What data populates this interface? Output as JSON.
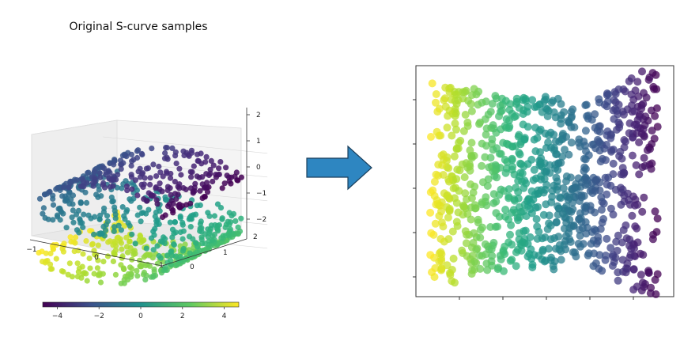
{
  "title": "Original S-curve samples",
  "chart_data": [
    {
      "type": "scatter",
      "title": "Original S-curve samples",
      "projection": "3d",
      "x_ticks": [
        "−1",
        "0",
        "1"
      ],
      "y_ticks": [
        "0",
        "1",
        "2"
      ],
      "z_ticks": [
        "2",
        "1",
        "0",
        "−1",
        "−2"
      ],
      "xlim": [
        -1,
        1
      ],
      "ylim": [
        0,
        2
      ],
      "zlim": [
        -2,
        2
      ],
      "colormap": "viridis",
      "colorbar": {
        "range": [
          -4.7,
          4.7
        ],
        "ticks": [
          "−4",
          "−2",
          "0",
          "2",
          "4"
        ]
      },
      "n_points": 1500
    },
    {
      "type": "scatter",
      "title": "",
      "description_note": "2D embedding of the S-curve, color by same parameter",
      "colormap": "viridis",
      "tick_labels": "none"
    }
  ],
  "arrow": {
    "color": "#2e86c1",
    "icon": "right-arrow-icon"
  }
}
